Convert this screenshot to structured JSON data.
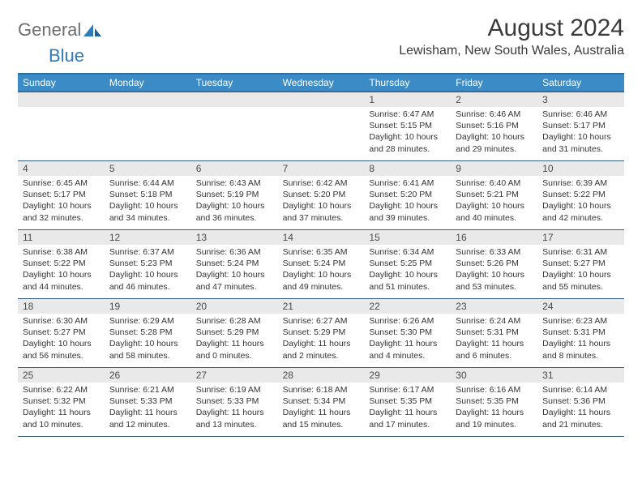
{
  "logo": {
    "text1": "General",
    "text2": "Blue"
  },
  "header": {
    "title": "August 2024",
    "location": "Lewisham, New South Wales, Australia"
  },
  "colors": {
    "header_bar": "#3b8bc6",
    "header_border": "#2f6fa0",
    "week_divider": "#345e82",
    "daynum_bg": "#e9e9e9",
    "text": "#333333",
    "title_text": "#3a3a3a",
    "logo_gray": "#6e6e6e",
    "logo_blue": "#2f7ab9"
  },
  "weekdays": [
    "Sunday",
    "Monday",
    "Tuesday",
    "Wednesday",
    "Thursday",
    "Friday",
    "Saturday"
  ],
  "weeks": [
    [
      {
        "n": "",
        "sunrise": "",
        "sunset": "",
        "daylight": ""
      },
      {
        "n": "",
        "sunrise": "",
        "sunset": "",
        "daylight": ""
      },
      {
        "n": "",
        "sunrise": "",
        "sunset": "",
        "daylight": ""
      },
      {
        "n": "",
        "sunrise": "",
        "sunset": "",
        "daylight": ""
      },
      {
        "n": "1",
        "sunrise": "Sunrise: 6:47 AM",
        "sunset": "Sunset: 5:15 PM",
        "daylight": "Daylight: 10 hours and 28 minutes."
      },
      {
        "n": "2",
        "sunrise": "Sunrise: 6:46 AM",
        "sunset": "Sunset: 5:16 PM",
        "daylight": "Daylight: 10 hours and 29 minutes."
      },
      {
        "n": "3",
        "sunrise": "Sunrise: 6:46 AM",
        "sunset": "Sunset: 5:17 PM",
        "daylight": "Daylight: 10 hours and 31 minutes."
      }
    ],
    [
      {
        "n": "4",
        "sunrise": "Sunrise: 6:45 AM",
        "sunset": "Sunset: 5:17 PM",
        "daylight": "Daylight: 10 hours and 32 minutes."
      },
      {
        "n": "5",
        "sunrise": "Sunrise: 6:44 AM",
        "sunset": "Sunset: 5:18 PM",
        "daylight": "Daylight: 10 hours and 34 minutes."
      },
      {
        "n": "6",
        "sunrise": "Sunrise: 6:43 AM",
        "sunset": "Sunset: 5:19 PM",
        "daylight": "Daylight: 10 hours and 36 minutes."
      },
      {
        "n": "7",
        "sunrise": "Sunrise: 6:42 AM",
        "sunset": "Sunset: 5:20 PM",
        "daylight": "Daylight: 10 hours and 37 minutes."
      },
      {
        "n": "8",
        "sunrise": "Sunrise: 6:41 AM",
        "sunset": "Sunset: 5:20 PM",
        "daylight": "Daylight: 10 hours and 39 minutes."
      },
      {
        "n": "9",
        "sunrise": "Sunrise: 6:40 AM",
        "sunset": "Sunset: 5:21 PM",
        "daylight": "Daylight: 10 hours and 40 minutes."
      },
      {
        "n": "10",
        "sunrise": "Sunrise: 6:39 AM",
        "sunset": "Sunset: 5:22 PM",
        "daylight": "Daylight: 10 hours and 42 minutes."
      }
    ],
    [
      {
        "n": "11",
        "sunrise": "Sunrise: 6:38 AM",
        "sunset": "Sunset: 5:22 PM",
        "daylight": "Daylight: 10 hours and 44 minutes."
      },
      {
        "n": "12",
        "sunrise": "Sunrise: 6:37 AM",
        "sunset": "Sunset: 5:23 PM",
        "daylight": "Daylight: 10 hours and 46 minutes."
      },
      {
        "n": "13",
        "sunrise": "Sunrise: 6:36 AM",
        "sunset": "Sunset: 5:24 PM",
        "daylight": "Daylight: 10 hours and 47 minutes."
      },
      {
        "n": "14",
        "sunrise": "Sunrise: 6:35 AM",
        "sunset": "Sunset: 5:24 PM",
        "daylight": "Daylight: 10 hours and 49 minutes."
      },
      {
        "n": "15",
        "sunrise": "Sunrise: 6:34 AM",
        "sunset": "Sunset: 5:25 PM",
        "daylight": "Daylight: 10 hours and 51 minutes."
      },
      {
        "n": "16",
        "sunrise": "Sunrise: 6:33 AM",
        "sunset": "Sunset: 5:26 PM",
        "daylight": "Daylight: 10 hours and 53 minutes."
      },
      {
        "n": "17",
        "sunrise": "Sunrise: 6:31 AM",
        "sunset": "Sunset: 5:27 PM",
        "daylight": "Daylight: 10 hours and 55 minutes."
      }
    ],
    [
      {
        "n": "18",
        "sunrise": "Sunrise: 6:30 AM",
        "sunset": "Sunset: 5:27 PM",
        "daylight": "Daylight: 10 hours and 56 minutes."
      },
      {
        "n": "19",
        "sunrise": "Sunrise: 6:29 AM",
        "sunset": "Sunset: 5:28 PM",
        "daylight": "Daylight: 10 hours and 58 minutes."
      },
      {
        "n": "20",
        "sunrise": "Sunrise: 6:28 AM",
        "sunset": "Sunset: 5:29 PM",
        "daylight": "Daylight: 11 hours and 0 minutes."
      },
      {
        "n": "21",
        "sunrise": "Sunrise: 6:27 AM",
        "sunset": "Sunset: 5:29 PM",
        "daylight": "Daylight: 11 hours and 2 minutes."
      },
      {
        "n": "22",
        "sunrise": "Sunrise: 6:26 AM",
        "sunset": "Sunset: 5:30 PM",
        "daylight": "Daylight: 11 hours and 4 minutes."
      },
      {
        "n": "23",
        "sunrise": "Sunrise: 6:24 AM",
        "sunset": "Sunset: 5:31 PM",
        "daylight": "Daylight: 11 hours and 6 minutes."
      },
      {
        "n": "24",
        "sunrise": "Sunrise: 6:23 AM",
        "sunset": "Sunset: 5:31 PM",
        "daylight": "Daylight: 11 hours and 8 minutes."
      }
    ],
    [
      {
        "n": "25",
        "sunrise": "Sunrise: 6:22 AM",
        "sunset": "Sunset: 5:32 PM",
        "daylight": "Daylight: 11 hours and 10 minutes."
      },
      {
        "n": "26",
        "sunrise": "Sunrise: 6:21 AM",
        "sunset": "Sunset: 5:33 PM",
        "daylight": "Daylight: 11 hours and 12 minutes."
      },
      {
        "n": "27",
        "sunrise": "Sunrise: 6:19 AM",
        "sunset": "Sunset: 5:33 PM",
        "daylight": "Daylight: 11 hours and 13 minutes."
      },
      {
        "n": "28",
        "sunrise": "Sunrise: 6:18 AM",
        "sunset": "Sunset: 5:34 PM",
        "daylight": "Daylight: 11 hours and 15 minutes."
      },
      {
        "n": "29",
        "sunrise": "Sunrise: 6:17 AM",
        "sunset": "Sunset: 5:35 PM",
        "daylight": "Daylight: 11 hours and 17 minutes."
      },
      {
        "n": "30",
        "sunrise": "Sunrise: 6:16 AM",
        "sunset": "Sunset: 5:35 PM",
        "daylight": "Daylight: 11 hours and 19 minutes."
      },
      {
        "n": "31",
        "sunrise": "Sunrise: 6:14 AM",
        "sunset": "Sunset: 5:36 PM",
        "daylight": "Daylight: 11 hours and 21 minutes."
      }
    ]
  ]
}
